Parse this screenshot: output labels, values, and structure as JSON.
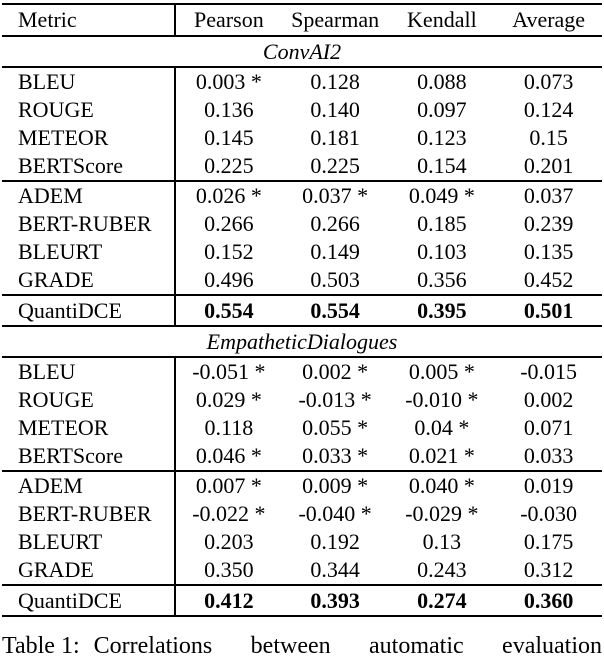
{
  "table": {
    "columns": [
      "Metric",
      "Pearson",
      "Spearman",
      "Kendall",
      "Average"
    ],
    "sections": [
      {
        "title": "ConvAI2",
        "rows": [
          {
            "metric": "BLEU",
            "values": [
              "0.003 *",
              "0.128",
              "0.088",
              "0.073"
            ]
          },
          {
            "metric": "ROUGE",
            "values": [
              "0.136",
              "0.140",
              "0.097",
              "0.124"
            ]
          },
          {
            "metric": "METEOR",
            "values": [
              "0.145",
              "0.181",
              "0.123",
              "0.15"
            ]
          },
          {
            "metric": "BERTScore",
            "values": [
              "0.225",
              "0.225",
              "0.154",
              "0.201"
            ]
          },
          {
            "metric": "ADEM",
            "values": [
              "0.026 *",
              "0.037 *",
              "0.049 *",
              "0.037"
            ]
          },
          {
            "metric": "BERT-RUBER",
            "values": [
              "0.266",
              "0.266",
              "0.185",
              "0.239"
            ]
          },
          {
            "metric": "BLEURT",
            "values": [
              "0.152",
              "0.149",
              "0.103",
              "0.135"
            ]
          },
          {
            "metric": "GRADE",
            "values": [
              "0.496",
              "0.503",
              "0.356",
              "0.452"
            ]
          },
          {
            "metric": "QuantiDCE",
            "values": [
              "0.554",
              "0.554",
              "0.395",
              "0.501"
            ]
          }
        ]
      },
      {
        "title": "EmpatheticDialogues",
        "rows": [
          {
            "metric": "BLEU",
            "values": [
              "-0.051 *",
              "0.002 *",
              "0.005 *",
              "-0.015"
            ]
          },
          {
            "metric": "ROUGE",
            "values": [
              "0.029 *",
              "-0.013 *",
              "-0.010 *",
              "0.002"
            ]
          },
          {
            "metric": "METEOR",
            "values": [
              "0.118",
              "0.055 *",
              "0.04 *",
              "0.071"
            ]
          },
          {
            "metric": "BERTScore",
            "values": [
              "0.046 *",
              "0.033 *",
              "0.021 *",
              "0.033"
            ]
          },
          {
            "metric": "ADEM",
            "values": [
              "0.007 *",
              "0.009 *",
              "0.040 *",
              "0.019"
            ]
          },
          {
            "metric": "BERT-RUBER",
            "values": [
              "-0.022 *",
              "-0.040 *",
              "-0.029 *",
              "-0.030"
            ]
          },
          {
            "metric": "BLEURT",
            "values": [
              "0.203",
              "0.192",
              "0.13",
              "0.175"
            ]
          },
          {
            "metric": "GRADE",
            "values": [
              "0.350",
              "0.344",
              "0.243",
              "0.312"
            ]
          },
          {
            "metric": "QuantiDCE",
            "values": [
              "0.412",
              "0.393",
              "0.274",
              "0.360"
            ]
          }
        ]
      }
    ]
  },
  "caption": {
    "label": "Table 1:",
    "text": "Correlations between automatic evaluation"
  }
}
